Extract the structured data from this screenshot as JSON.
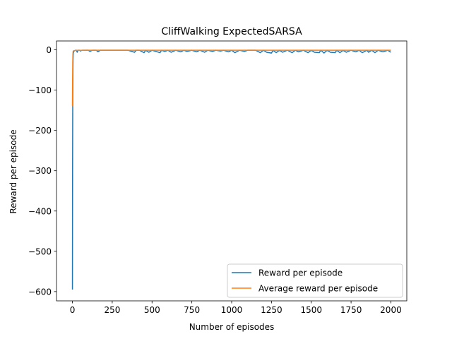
{
  "chart_data": {
    "type": "line",
    "title": "CliffWalking ExpectedSARSA",
    "xlabel": "Number of episodes",
    "ylabel": "Reward per episode",
    "xlim": [
      -100,
      2100
    ],
    "ylim": [
      -623,
      22
    ],
    "xticks": [
      0,
      250,
      500,
      750,
      1000,
      1250,
      1500,
      1750,
      2000
    ],
    "xtick_labels": [
      "0",
      "250",
      "500",
      "750",
      "1000",
      "1250",
      "1500",
      "1750",
      "2000"
    ],
    "yticks": [
      0,
      -100,
      -200,
      -300,
      -400,
      -500,
      -600
    ],
    "ytick_labels": [
      "0",
      "−100",
      "−200",
      "−300",
      "−400",
      "−500",
      "−600"
    ],
    "grid": false,
    "legend_position": "lower-right",
    "series": [
      {
        "name": "Reward per episode",
        "color": "#1f77b4",
        "x": [
          0,
          1,
          2,
          3,
          4,
          5,
          6,
          8,
          10,
          15,
          20,
          25,
          30,
          35,
          40,
          45,
          50,
          60,
          75,
          100,
          110,
          125,
          150,
          160,
          175,
          200,
          250,
          300,
          350,
          390,
          400,
          420,
          450,
          460,
          480,
          500,
          550,
          560,
          580,
          600,
          620,
          650,
          680,
          700,
          720,
          750,
          780,
          800,
          830,
          850,
          880,
          900,
          930,
          950,
          980,
          1000,
          1020,
          1050,
          1080,
          1100,
          1150,
          1180,
          1200,
          1220,
          1250,
          1260,
          1280,
          1300,
          1320,
          1350,
          1380,
          1400,
          1420,
          1450,
          1480,
          1500,
          1520,
          1550,
          1560,
          1580,
          1600,
          1620,
          1650,
          1660,
          1680,
          1700,
          1720,
          1750,
          1780,
          1800,
          1820,
          1850,
          1860,
          1880,
          1900,
          1920,
          1950,
          1980,
          2000
        ],
        "y": [
          -595,
          -300,
          -140,
          -60,
          -25,
          -13,
          -8,
          -5,
          -3,
          -2,
          -1,
          -1,
          -6,
          -1,
          -1,
          -1,
          -3,
          -1,
          -1,
          -1,
          -4,
          -1,
          -1,
          -5,
          -1,
          -1,
          -1,
          -1,
          -1,
          -6,
          -1,
          -1,
          -7,
          -1,
          -6,
          -1,
          -7,
          -1,
          -4,
          -1,
          -6,
          -1,
          -5,
          -1,
          -4,
          -1,
          -5,
          -1,
          -6,
          -1,
          -4,
          -1,
          -3,
          -1,
          -5,
          -1,
          -7,
          -1,
          -4,
          -1,
          -1,
          -7,
          -1,
          -6,
          -8,
          -1,
          -7,
          -1,
          -6,
          -1,
          -7,
          -1,
          -5,
          -1,
          -7,
          -1,
          -6,
          -7,
          -1,
          -8,
          -1,
          -6,
          -7,
          -1,
          -7,
          -1,
          -6,
          -1,
          -5,
          -1,
          -7,
          -1,
          -6,
          -1,
          -7,
          -1,
          -5,
          -1,
          -6
        ]
      },
      {
        "name": "Average reward per episode",
        "color": "#ff7f0e",
        "x": [
          0,
          1,
          2,
          3,
          4,
          5,
          10,
          20,
          50,
          100,
          200,
          500,
          1000,
          1500,
          2000
        ],
        "y": [
          -140,
          -75,
          -30,
          -12,
          -5,
          -3,
          -2,
          -1.5,
          -1.2,
          -1.1,
          -1,
          -1,
          -1,
          -1,
          -1
        ]
      }
    ]
  }
}
